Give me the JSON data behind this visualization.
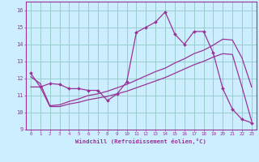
{
  "xlabel": "Windchill (Refroidissement éolien,°C)",
  "xlim": [
    -0.5,
    23.5
  ],
  "ylim": [
    9.0,
    16.5
  ],
  "yticks": [
    9,
    10,
    11,
    12,
    13,
    14,
    15,
    16
  ],
  "xticks": [
    0,
    1,
    2,
    3,
    4,
    5,
    6,
    7,
    8,
    9,
    10,
    11,
    12,
    13,
    14,
    15,
    16,
    17,
    18,
    19,
    20,
    21,
    22,
    23
  ],
  "bg_color": "#cceeff",
  "line_color": "#993399",
  "grid_color": "#99cccc",
  "line1_x": [
    0,
    1,
    2,
    3,
    4,
    5,
    6,
    7,
    8,
    9,
    10,
    11,
    12,
    13,
    14,
    15,
    16,
    17,
    18,
    19,
    20,
    21,
    22,
    23
  ],
  "line1_y": [
    12.3,
    11.5,
    11.7,
    11.65,
    11.4,
    11.4,
    11.3,
    11.3,
    10.7,
    11.1,
    11.8,
    14.7,
    15.0,
    15.3,
    15.9,
    14.6,
    14.0,
    14.75,
    14.75,
    13.5,
    11.4,
    10.2,
    9.6,
    9.4
  ],
  "line2_x": [
    0,
    1,
    2,
    3,
    4,
    5,
    6,
    7,
    8,
    9,
    10,
    11,
    12,
    13,
    14,
    15,
    16,
    17,
    18,
    19,
    20,
    21,
    22,
    23
  ],
  "line2_y": [
    11.5,
    11.5,
    10.35,
    10.35,
    10.5,
    10.6,
    10.75,
    10.85,
    10.95,
    11.1,
    11.25,
    11.45,
    11.65,
    11.85,
    12.05,
    12.3,
    12.55,
    12.8,
    13.0,
    13.25,
    13.45,
    13.4,
    11.5,
    9.5
  ],
  "line3_x": [
    0,
    1,
    2,
    3,
    4,
    5,
    6,
    7,
    8,
    9,
    10,
    11,
    12,
    13,
    14,
    15,
    16,
    17,
    18,
    19,
    20,
    21,
    22,
    23
  ],
  "line3_y": [
    12.1,
    11.7,
    10.4,
    10.45,
    10.65,
    10.8,
    11.0,
    11.1,
    11.25,
    11.45,
    11.65,
    11.9,
    12.15,
    12.4,
    12.6,
    12.9,
    13.15,
    13.45,
    13.65,
    13.95,
    14.3,
    14.25,
    13.2,
    11.5
  ]
}
